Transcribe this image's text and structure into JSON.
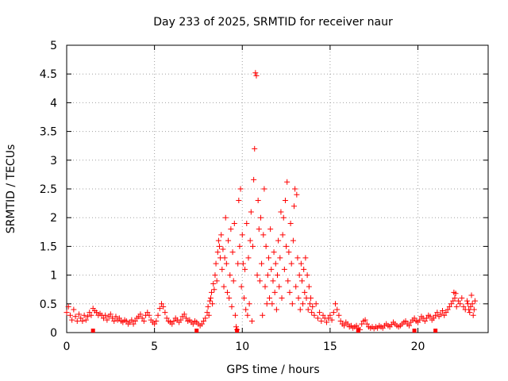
{
  "chart_data": {
    "type": "scatter",
    "title": "Day 233 of 2025, SRMTID for receiver naur",
    "xlabel": "GPS time / hours",
    "ylabel": "SRMTID / TECUs",
    "xlim": [
      0,
      24
    ],
    "ylim": [
      0,
      5
    ],
    "xticks": [
      0,
      5,
      10,
      15,
      20
    ],
    "xtick_labels": [
      "0",
      "5",
      "10",
      "15",
      "20"
    ],
    "yticks": [
      0,
      0.5,
      1,
      1.5,
      2,
      2.5,
      3,
      3.5,
      4,
      4.5,
      5
    ],
    "ytick_labels": [
      "0",
      "0.5",
      "1",
      "1.5",
      "2",
      "2.5",
      "3",
      "3.5",
      "4",
      "4.5",
      "5"
    ],
    "grid": true,
    "marker": "+",
    "color": "#ff0000",
    "series": [
      {
        "name": "SRMTID",
        "points": [
          [
            0.0,
            0.35
          ],
          [
            0.1,
            0.45
          ],
          [
            0.2,
            0.3
          ],
          [
            0.3,
            0.22
          ],
          [
            0.4,
            0.4
          ],
          [
            0.5,
            0.28
          ],
          [
            0.6,
            0.2
          ],
          [
            0.7,
            0.32
          ],
          [
            0.8,
            0.25
          ],
          [
            0.9,
            0.2
          ],
          [
            1.0,
            0.3
          ],
          [
            1.1,
            0.22
          ],
          [
            1.2,
            0.28
          ],
          [
            1.3,
            0.35
          ],
          [
            1.4,
            0.3
          ],
          [
            1.5,
            0.42
          ],
          [
            1.6,
            0.38
          ],
          [
            1.7,
            0.35
          ],
          [
            1.8,
            0.3
          ],
          [
            1.9,
            0.33
          ],
          [
            2.0,
            0.3
          ],
          [
            2.1,
            0.25
          ],
          [
            2.2,
            0.3
          ],
          [
            2.3,
            0.22
          ],
          [
            2.4,
            0.28
          ],
          [
            2.5,
            0.32
          ],
          [
            2.6,
            0.25
          ],
          [
            2.7,
            0.2
          ],
          [
            2.8,
            0.28
          ],
          [
            2.9,
            0.22
          ],
          [
            3.0,
            0.25
          ],
          [
            3.1,
            0.2
          ],
          [
            3.2,
            0.18
          ],
          [
            3.3,
            0.22
          ],
          [
            3.4,
            0.2
          ],
          [
            3.5,
            0.15
          ],
          [
            3.6,
            0.18
          ],
          [
            3.7,
            0.22
          ],
          [
            3.8,
            0.15
          ],
          [
            3.9,
            0.2
          ],
          [
            4.0,
            0.25
          ],
          [
            4.1,
            0.28
          ],
          [
            4.2,
            0.32
          ],
          [
            4.3,
            0.25
          ],
          [
            4.4,
            0.2
          ],
          [
            4.5,
            0.3
          ],
          [
            4.6,
            0.35
          ],
          [
            4.7,
            0.3
          ],
          [
            4.8,
            0.22
          ],
          [
            4.9,
            0.18
          ],
          [
            5.0,
            0.15
          ],
          [
            5.1,
            0.2
          ],
          [
            5.2,
            0.3
          ],
          [
            5.3,
            0.42
          ],
          [
            5.4,
            0.5
          ],
          [
            5.5,
            0.45
          ],
          [
            5.6,
            0.35
          ],
          [
            5.7,
            0.25
          ],
          [
            5.8,
            0.2
          ],
          [
            5.9,
            0.18
          ],
          [
            6.0,
            0.15
          ],
          [
            6.1,
            0.2
          ],
          [
            6.2,
            0.25
          ],
          [
            6.3,
            0.22
          ],
          [
            6.4,
            0.18
          ],
          [
            6.5,
            0.22
          ],
          [
            6.6,
            0.28
          ],
          [
            6.7,
            0.32
          ],
          [
            6.8,
            0.25
          ],
          [
            6.9,
            0.2
          ],
          [
            7.0,
            0.22
          ],
          [
            7.1,
            0.18
          ],
          [
            7.2,
            0.15
          ],
          [
            7.3,
            0.2
          ],
          [
            7.4,
            0.18
          ],
          [
            7.5,
            0.15
          ],
          [
            7.6,
            0.12
          ],
          [
            7.7,
            0.15
          ],
          [
            7.8,
            0.2
          ],
          [
            7.9,
            0.25
          ],
          [
            8.0,
            0.35
          ],
          [
            8.05,
            0.45
          ],
          [
            8.1,
            0.3
          ],
          [
            8.15,
            0.55
          ],
          [
            8.2,
            0.6
          ],
          [
            8.25,
            0.7
          ],
          [
            8.3,
            0.5
          ],
          [
            8.35,
            0.85
          ],
          [
            8.4,
            0.75
          ],
          [
            8.45,
            1.0
          ],
          [
            8.5,
            1.2
          ],
          [
            8.55,
            0.9
          ],
          [
            8.6,
            1.4
          ],
          [
            8.65,
            1.6
          ],
          [
            8.7,
            1.5
          ],
          [
            8.75,
            1.3
          ],
          [
            8.8,
            1.7
          ],
          [
            8.85,
            1.1
          ],
          [
            8.9,
            1.45
          ],
          [
            8.95,
            0.8
          ],
          [
            9.0,
            1.3
          ],
          [
            9.05,
            2.0
          ],
          [
            9.1,
            1.2
          ],
          [
            9.15,
            0.7
          ],
          [
            9.2,
            1.6
          ],
          [
            9.25,
            0.6
          ],
          [
            9.3,
            1.0
          ],
          [
            9.35,
            1.8
          ],
          [
            9.4,
            0.45
          ],
          [
            9.45,
            1.4
          ],
          [
            9.5,
            0.9
          ],
          [
            9.55,
            1.9
          ],
          [
            9.6,
            0.3
          ],
          [
            9.65,
            0.1
          ],
          [
            9.7,
            0.05
          ],
          [
            9.75,
            1.2
          ],
          [
            9.8,
            2.3
          ],
          [
            9.85,
            1.5
          ],
          [
            9.9,
            2.5
          ],
          [
            9.95,
            0.8
          ],
          [
            10.0,
            1.7
          ],
          [
            10.05,
            1.2
          ],
          [
            10.1,
            0.6
          ],
          [
            10.15,
            1.1
          ],
          [
            10.2,
            0.4
          ],
          [
            10.25,
            1.9
          ],
          [
            10.3,
            0.3
          ],
          [
            10.35,
            1.3
          ],
          [
            10.4,
            0.5
          ],
          [
            10.45,
            1.6
          ],
          [
            10.5,
            2.1
          ],
          [
            10.55,
            0.2
          ],
          [
            10.6,
            1.5
          ],
          [
            10.65,
            2.66
          ],
          [
            10.7,
            3.2
          ],
          [
            10.75,
            4.52
          ],
          [
            10.8,
            4.47
          ],
          [
            10.85,
            1.0
          ],
          [
            10.9,
            2.3
          ],
          [
            10.95,
            1.8
          ],
          [
            11.0,
            0.9
          ],
          [
            11.05,
            2.0
          ],
          [
            11.1,
            1.2
          ],
          [
            11.15,
            0.3
          ],
          [
            11.2,
            1.7
          ],
          [
            11.25,
            2.5
          ],
          [
            11.3,
            0.8
          ],
          [
            11.35,
            1.5
          ],
          [
            11.4,
            0.5
          ],
          [
            11.45,
            1.0
          ],
          [
            11.5,
            1.3
          ],
          [
            11.55,
            0.6
          ],
          [
            11.6,
            1.8
          ],
          [
            11.65,
            1.1
          ],
          [
            11.7,
            0.5
          ],
          [
            11.75,
            0.9
          ],
          [
            11.8,
            1.4
          ],
          [
            11.85,
            0.7
          ],
          [
            11.9,
            1.2
          ],
          [
            11.95,
            0.4
          ],
          [
            12.0,
            1.0
          ],
          [
            12.05,
            1.6
          ],
          [
            12.1,
            0.8
          ],
          [
            12.15,
            1.3
          ],
          [
            12.2,
            2.1
          ],
          [
            12.25,
            0.6
          ],
          [
            12.3,
            1.7
          ],
          [
            12.35,
            2.0
          ],
          [
            12.4,
            1.1
          ],
          [
            12.45,
            2.3
          ],
          [
            12.5,
            1.5
          ],
          [
            12.55,
            2.62
          ],
          [
            12.6,
            0.9
          ],
          [
            12.65,
            1.4
          ],
          [
            12.7,
            0.7
          ],
          [
            12.75,
            1.9
          ],
          [
            12.8,
            1.2
          ],
          [
            12.85,
            0.5
          ],
          [
            12.9,
            1.6
          ],
          [
            12.95,
            2.2
          ],
          [
            13.0,
            2.5
          ],
          [
            13.05,
            0.8
          ],
          [
            13.1,
            2.4
          ],
          [
            13.15,
            1.3
          ],
          [
            13.2,
            0.6
          ],
          [
            13.25,
            1.0
          ],
          [
            13.3,
            0.4
          ],
          [
            13.35,
            1.2
          ],
          [
            13.4,
            0.9
          ],
          [
            13.45,
            0.5
          ],
          [
            13.5,
            1.1
          ],
          [
            13.55,
            0.7
          ],
          [
            13.6,
            1.3
          ],
          [
            13.65,
            0.6
          ],
          [
            13.7,
            1.0
          ],
          [
            13.75,
            0.4
          ],
          [
            13.8,
            0.8
          ],
          [
            13.85,
            0.5
          ],
          [
            13.9,
            0.6
          ],
          [
            13.95,
            0.35
          ],
          [
            14.0,
            0.45
          ],
          [
            14.1,
            0.3
          ],
          [
            14.2,
            0.5
          ],
          [
            14.3,
            0.25
          ],
          [
            14.4,
            0.35
          ],
          [
            14.5,
            0.2
          ],
          [
            14.6,
            0.3
          ],
          [
            14.7,
            0.25
          ],
          [
            14.8,
            0.18
          ],
          [
            14.9,
            0.25
          ],
          [
            15.0,
            0.3
          ],
          [
            15.1,
            0.22
          ],
          [
            15.2,
            0.35
          ],
          [
            15.3,
            0.5
          ],
          [
            15.4,
            0.4
          ],
          [
            15.5,
            0.3
          ],
          [
            15.6,
            0.2
          ],
          [
            15.7,
            0.15
          ],
          [
            15.8,
            0.12
          ],
          [
            15.9,
            0.18
          ],
          [
            16.0,
            0.15
          ],
          [
            16.1,
            0.1
          ],
          [
            16.2,
            0.12
          ],
          [
            16.3,
            0.08
          ],
          [
            16.4,
            0.1
          ],
          [
            16.5,
            0.12
          ],
          [
            16.6,
            0.08
          ],
          [
            16.7,
            0.05
          ],
          [
            16.8,
            0.15
          ],
          [
            16.9,
            0.2
          ],
          [
            17.0,
            0.22
          ],
          [
            17.1,
            0.15
          ],
          [
            17.2,
            0.1
          ],
          [
            17.3,
            0.08
          ],
          [
            17.4,
            0.1
          ],
          [
            17.5,
            0.07
          ],
          [
            17.6,
            0.1
          ],
          [
            17.7,
            0.08
          ],
          [
            17.8,
            0.12
          ],
          [
            17.9,
            0.1
          ],
          [
            18.0,
            0.08
          ],
          [
            18.1,
            0.12
          ],
          [
            18.2,
            0.15
          ],
          [
            18.3,
            0.12
          ],
          [
            18.4,
            0.1
          ],
          [
            18.5,
            0.14
          ],
          [
            18.6,
            0.18
          ],
          [
            18.7,
            0.15
          ],
          [
            18.8,
            0.12
          ],
          [
            18.9,
            0.1
          ],
          [
            19.0,
            0.12
          ],
          [
            19.1,
            0.15
          ],
          [
            19.2,
            0.18
          ],
          [
            19.3,
            0.2
          ],
          [
            19.4,
            0.15
          ],
          [
            19.5,
            0.12
          ],
          [
            19.6,
            0.18
          ],
          [
            19.7,
            0.22
          ],
          [
            19.8,
            0.25
          ],
          [
            19.9,
            0.2
          ],
          [
            20.0,
            0.18
          ],
          [
            20.1,
            0.22
          ],
          [
            20.2,
            0.28
          ],
          [
            20.3,
            0.25
          ],
          [
            20.4,
            0.2
          ],
          [
            20.5,
            0.25
          ],
          [
            20.6,
            0.3
          ],
          [
            20.7,
            0.28
          ],
          [
            20.8,
            0.22
          ],
          [
            20.9,
            0.25
          ],
          [
            21.0,
            0.3
          ],
          [
            21.1,
            0.35
          ],
          [
            21.2,
            0.28
          ],
          [
            21.3,
            0.32
          ],
          [
            21.4,
            0.38
          ],
          [
            21.5,
            0.3
          ],
          [
            21.6,
            0.35
          ],
          [
            21.7,
            0.4
          ],
          [
            21.8,
            0.45
          ],
          [
            21.9,
            0.5
          ],
          [
            22.0,
            0.55
          ],
          [
            22.05,
            0.7
          ],
          [
            22.1,
            0.6
          ],
          [
            22.15,
            0.68
          ],
          [
            22.2,
            0.45
          ],
          [
            22.3,
            0.55
          ],
          [
            22.4,
            0.5
          ],
          [
            22.5,
            0.6
          ],
          [
            22.6,
            0.45
          ],
          [
            22.7,
            0.4
          ],
          [
            22.8,
            0.55
          ],
          [
            22.85,
            0.5
          ],
          [
            22.9,
            0.4
          ],
          [
            22.95,
            0.35
          ],
          [
            23.0,
            0.45
          ],
          [
            23.05,
            0.65
          ],
          [
            23.1,
            0.5
          ],
          [
            23.15,
            0.3
          ],
          [
            23.2,
            0.4
          ],
          [
            23.25,
            0.55
          ]
        ]
      }
    ],
    "zero_markers_x": [
      1.5,
      7.4,
      9.7,
      16.6,
      19.8,
      21.0
    ]
  }
}
